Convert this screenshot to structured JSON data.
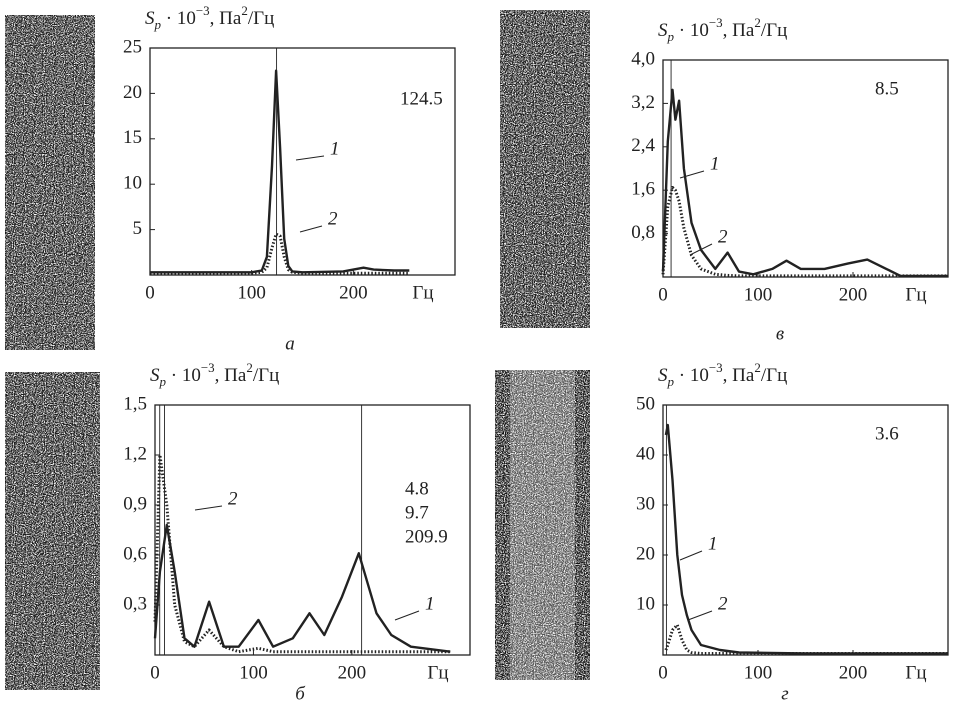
{
  "chart_data": [
    {
      "type": "line",
      "panel": "а",
      "ylabel": [
        "S",
        "p",
        " · 10",
        "−3",
        ", Па",
        "2",
        "/Гц"
      ],
      "xlabel": "Гц",
      "annotations": [
        124.5
      ],
      "x": [
        0,
        50,
        100,
        110,
        115,
        120,
        124,
        128,
        132,
        136,
        140,
        150,
        190,
        200,
        210,
        220,
        240,
        255
      ],
      "series": [
        {
          "name": "1",
          "color": "#222222",
          "style": "solid",
          "values": [
            0.3,
            0.3,
            0.3,
            0.5,
            2,
            12,
            22.5,
            14,
            4,
            1,
            0.4,
            0.3,
            0.4,
            0.6,
            0.8,
            0.6,
            0.5,
            0.5
          ]
        },
        {
          "name": "2",
          "color": "#222222",
          "style": "dotted",
          "values": [
            0.2,
            0.2,
            0.2,
            0.3,
            0.8,
            3,
            4.5,
            4.3,
            2,
            0.6,
            0.3,
            0.2,
            0.2,
            0.2,
            0.2,
            0.2,
            0.2,
            0.2
          ]
        }
      ],
      "xlim": [
        0,
        300
      ],
      "xticks": [
        0,
        100,
        200
      ],
      "ylim": [
        0,
        25
      ],
      "yticks": [
        5,
        10,
        15,
        20,
        25
      ]
    },
    {
      "type": "line",
      "panel": "б",
      "ylabel": [
        "S",
        "p",
        " · 10",
        "−3",
        ", Па",
        "2",
        "/Гц"
      ],
      "xlabel": "Гц",
      "annotations": [
        4.8,
        9.7,
        209.9
      ],
      "x": [
        0,
        5,
        12,
        20,
        30,
        40,
        55,
        70,
        85,
        105,
        120,
        140,
        157,
        172,
        190,
        207,
        225,
        240,
        260,
        300
      ],
      "series": [
        {
          "name": "1",
          "color": "#222222",
          "style": "solid",
          "values": [
            0.1,
            0.5,
            0.78,
            0.5,
            0.1,
            0.05,
            0.32,
            0.05,
            0.05,
            0.21,
            0.05,
            0.1,
            0.25,
            0.12,
            0.35,
            0.61,
            0.25,
            0.12,
            0.05,
            0.02
          ]
        },
        {
          "name": "2",
          "color": "#222222",
          "style": "dotted",
          "values": [
            0.2,
            1.2,
            0.9,
            0.3,
            0.08,
            0.05,
            0.15,
            0.05,
            0.02,
            0.04,
            0.02,
            0.02,
            0.02,
            0.02,
            0.02,
            0.02,
            0.02,
            0.02,
            0.02,
            0.02
          ]
        }
      ],
      "xlim": [
        0,
        320
      ],
      "xticks": [
        0,
        100,
        200
      ],
      "ylim": [
        0,
        1.5
      ],
      "yticks": [
        {
          "value": 0.3,
          "label": "0,3"
        },
        {
          "value": 0.6,
          "label": "0,6"
        },
        {
          "value": 0.9,
          "label": "0,9"
        },
        {
          "value": 1.2,
          "label": "1,2"
        },
        {
          "value": 1.5,
          "label": "1,5"
        }
      ]
    },
    {
      "type": "line",
      "panel": "в",
      "ylabel": [
        "S",
        "p",
        " · 10",
        "−3",
        ", Па",
        "2",
        "/Гц"
      ],
      "xlabel": "Гц",
      "annotations": [
        8.5
      ],
      "x": [
        0,
        5,
        10,
        13,
        17,
        22,
        30,
        40,
        55,
        68,
        80,
        95,
        115,
        130,
        145,
        170,
        195,
        215,
        235,
        250,
        300
      ],
      "series": [
        {
          "name": "1",
          "color": "#222222",
          "style": "solid",
          "values": [
            0.1,
            2.5,
            3.45,
            2.9,
            3.25,
            2.0,
            1.0,
            0.5,
            0.15,
            0.45,
            0.1,
            0.05,
            0.15,
            0.3,
            0.15,
            0.15,
            0.25,
            0.32,
            0.15,
            0.02,
            0.02
          ]
        },
        {
          "name": "2",
          "color": "#222222",
          "style": "dotted",
          "values": [
            0.05,
            1.3,
            1.65,
            1.6,
            1.4,
            0.9,
            0.4,
            0.15,
            0.05,
            0.03,
            0.02,
            0.02,
            0.02,
            0.02,
            0.02,
            0.02,
            0.02,
            0.02,
            0.02,
            0.02,
            0.02
          ]
        }
      ],
      "xlim": [
        0,
        300
      ],
      "xticks": [
        0,
        100,
        200
      ],
      "ylim": [
        0,
        4
      ],
      "yticks": [
        {
          "value": 0.8,
          "label": "0,8"
        },
        {
          "value": 1.6,
          "label": "1,6"
        },
        {
          "value": 2.4,
          "label": "2,4"
        },
        {
          "value": 3.2,
          "label": "3,2"
        },
        {
          "value": 4,
          "label": "4,0"
        }
      ]
    },
    {
      "type": "line",
      "panel": "г",
      "ylabel": [
        "S",
        "p",
        " · 10",
        "−3",
        ", Па",
        "2",
        "/Гц"
      ],
      "xlabel": "Гц",
      "annotations": [
        3.6
      ],
      "x": [
        3,
        5,
        10,
        15,
        20,
        25,
        30,
        40,
        60,
        80,
        150,
        300
      ],
      "series": [
        {
          "name": "1",
          "color": "#222222",
          "style": "solid",
          "values": [
            44,
            46,
            35,
            20,
            12,
            8,
            5,
            2,
            1,
            0.5,
            0.3,
            0.3
          ]
        },
        {
          "name": "2",
          "color": "#222222",
          "style": "dotted",
          "values": [
            1,
            2,
            5,
            6,
            3,
            1,
            0.5,
            0.3,
            0.3,
            0.3,
            0.3,
            0.3
          ]
        }
      ],
      "xlim": [
        0,
        300
      ],
      "xticks": [
        0,
        100,
        200
      ],
      "ylim": [
        0,
        50
      ],
      "yticks": [
        10,
        20,
        30,
        40,
        50
      ]
    }
  ]
}
